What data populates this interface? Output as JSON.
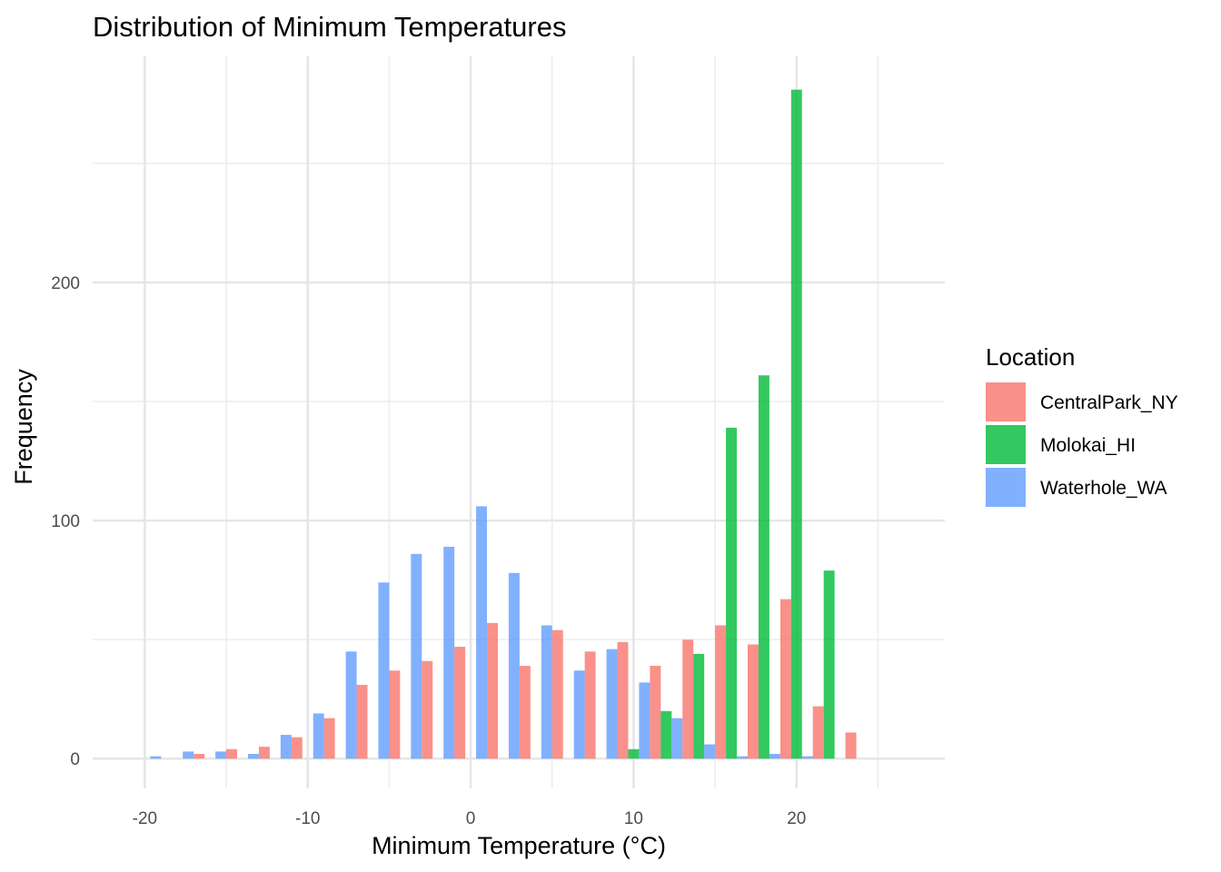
{
  "chart_data": {
    "type": "bar",
    "title": "Distribution of Minimum Temperatures",
    "xlabel": "Minimum Temperature (°C)",
    "ylabel": "Frequency",
    "xlim": [
      -23.2,
      29.1
    ],
    "ylim": [
      -12.5,
      295
    ],
    "x_ticks": [
      -20,
      -10,
      0,
      10,
      20
    ],
    "x_tick_labels": [
      "-20",
      "-10",
      "0",
      "10",
      "20"
    ],
    "y_ticks": [
      0,
      100,
      200
    ],
    "y_tick_labels": [
      "0",
      "100",
      "200"
    ],
    "bin_width": 2,
    "bin_centers": [
      -20,
      -18,
      -16,
      -14,
      -12,
      -10,
      -8,
      -6,
      -4,
      -2,
      0,
      2,
      4,
      6,
      8,
      10,
      12,
      14,
      16,
      18,
      20,
      22,
      24
    ],
    "legend": {
      "title": "Location",
      "position": "right"
    },
    "series": [
      {
        "name": "CentralPark_NY",
        "color": "#F8766D",
        "values": [
          0,
          0,
          2,
          4,
          5,
          9,
          17,
          31,
          37,
          41,
          47,
          57,
          39,
          54,
          45,
          49,
          39,
          50,
          56,
          48,
          67,
          22,
          11
        ]
      },
      {
        "name": "Molokai_HI",
        "color": "#00BA38",
        "values": [
          0,
          0,
          0,
          0,
          0,
          0,
          0,
          0,
          0,
          0,
          0,
          0,
          0,
          0,
          0,
          4,
          20,
          44,
          139,
          161,
          281,
          79,
          0
        ]
      },
      {
        "name": "Waterhole_WA",
        "color": "#619CFF",
        "values": [
          1,
          3,
          3,
          2,
          10,
          19,
          45,
          74,
          86,
          89,
          106,
          78,
          56,
          37,
          46,
          32,
          17,
          6,
          1,
          2,
          1,
          0,
          0
        ]
      }
    ],
    "grid": true
  }
}
